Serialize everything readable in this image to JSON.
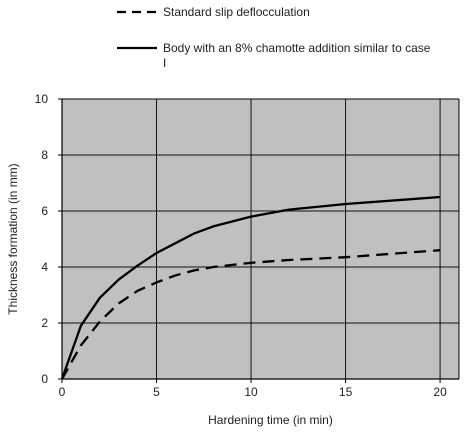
{
  "chart_data": {
    "type": "line",
    "title": "",
    "xlabel": "Hardening time  (in min)",
    "ylabel": "Thickness formation  (in mm)",
    "xlim": [
      0,
      21
    ],
    "ylim": [
      0,
      10
    ],
    "xticks": [
      0,
      5,
      10,
      15,
      20
    ],
    "yticks": [
      0,
      2,
      4,
      6,
      8,
      10
    ],
    "grid": true,
    "plot_background": "#c0c0c0",
    "legend_position": "top",
    "series": [
      {
        "name": "Standard slip deflocculation",
        "style": "dashed",
        "color": "#000000",
        "x": [
          0,
          1,
          2,
          3,
          4,
          5,
          6,
          7,
          8,
          10,
          12,
          15,
          18,
          20
        ],
        "y": [
          0,
          1.2,
          2.05,
          2.7,
          3.15,
          3.45,
          3.7,
          3.88,
          4.0,
          4.15,
          4.25,
          4.35,
          4.5,
          4.6
        ]
      },
      {
        "name": "Body with an 8% chamotte addition similar to case I",
        "style": "solid",
        "color": "#000000",
        "x": [
          0,
          1,
          2,
          3,
          4,
          5,
          6,
          7,
          8,
          10,
          12,
          15,
          18,
          20
        ],
        "y": [
          0,
          1.9,
          2.9,
          3.55,
          4.05,
          4.5,
          4.85,
          5.2,
          5.45,
          5.8,
          6.05,
          6.25,
          6.4,
          6.5
        ]
      }
    ]
  }
}
